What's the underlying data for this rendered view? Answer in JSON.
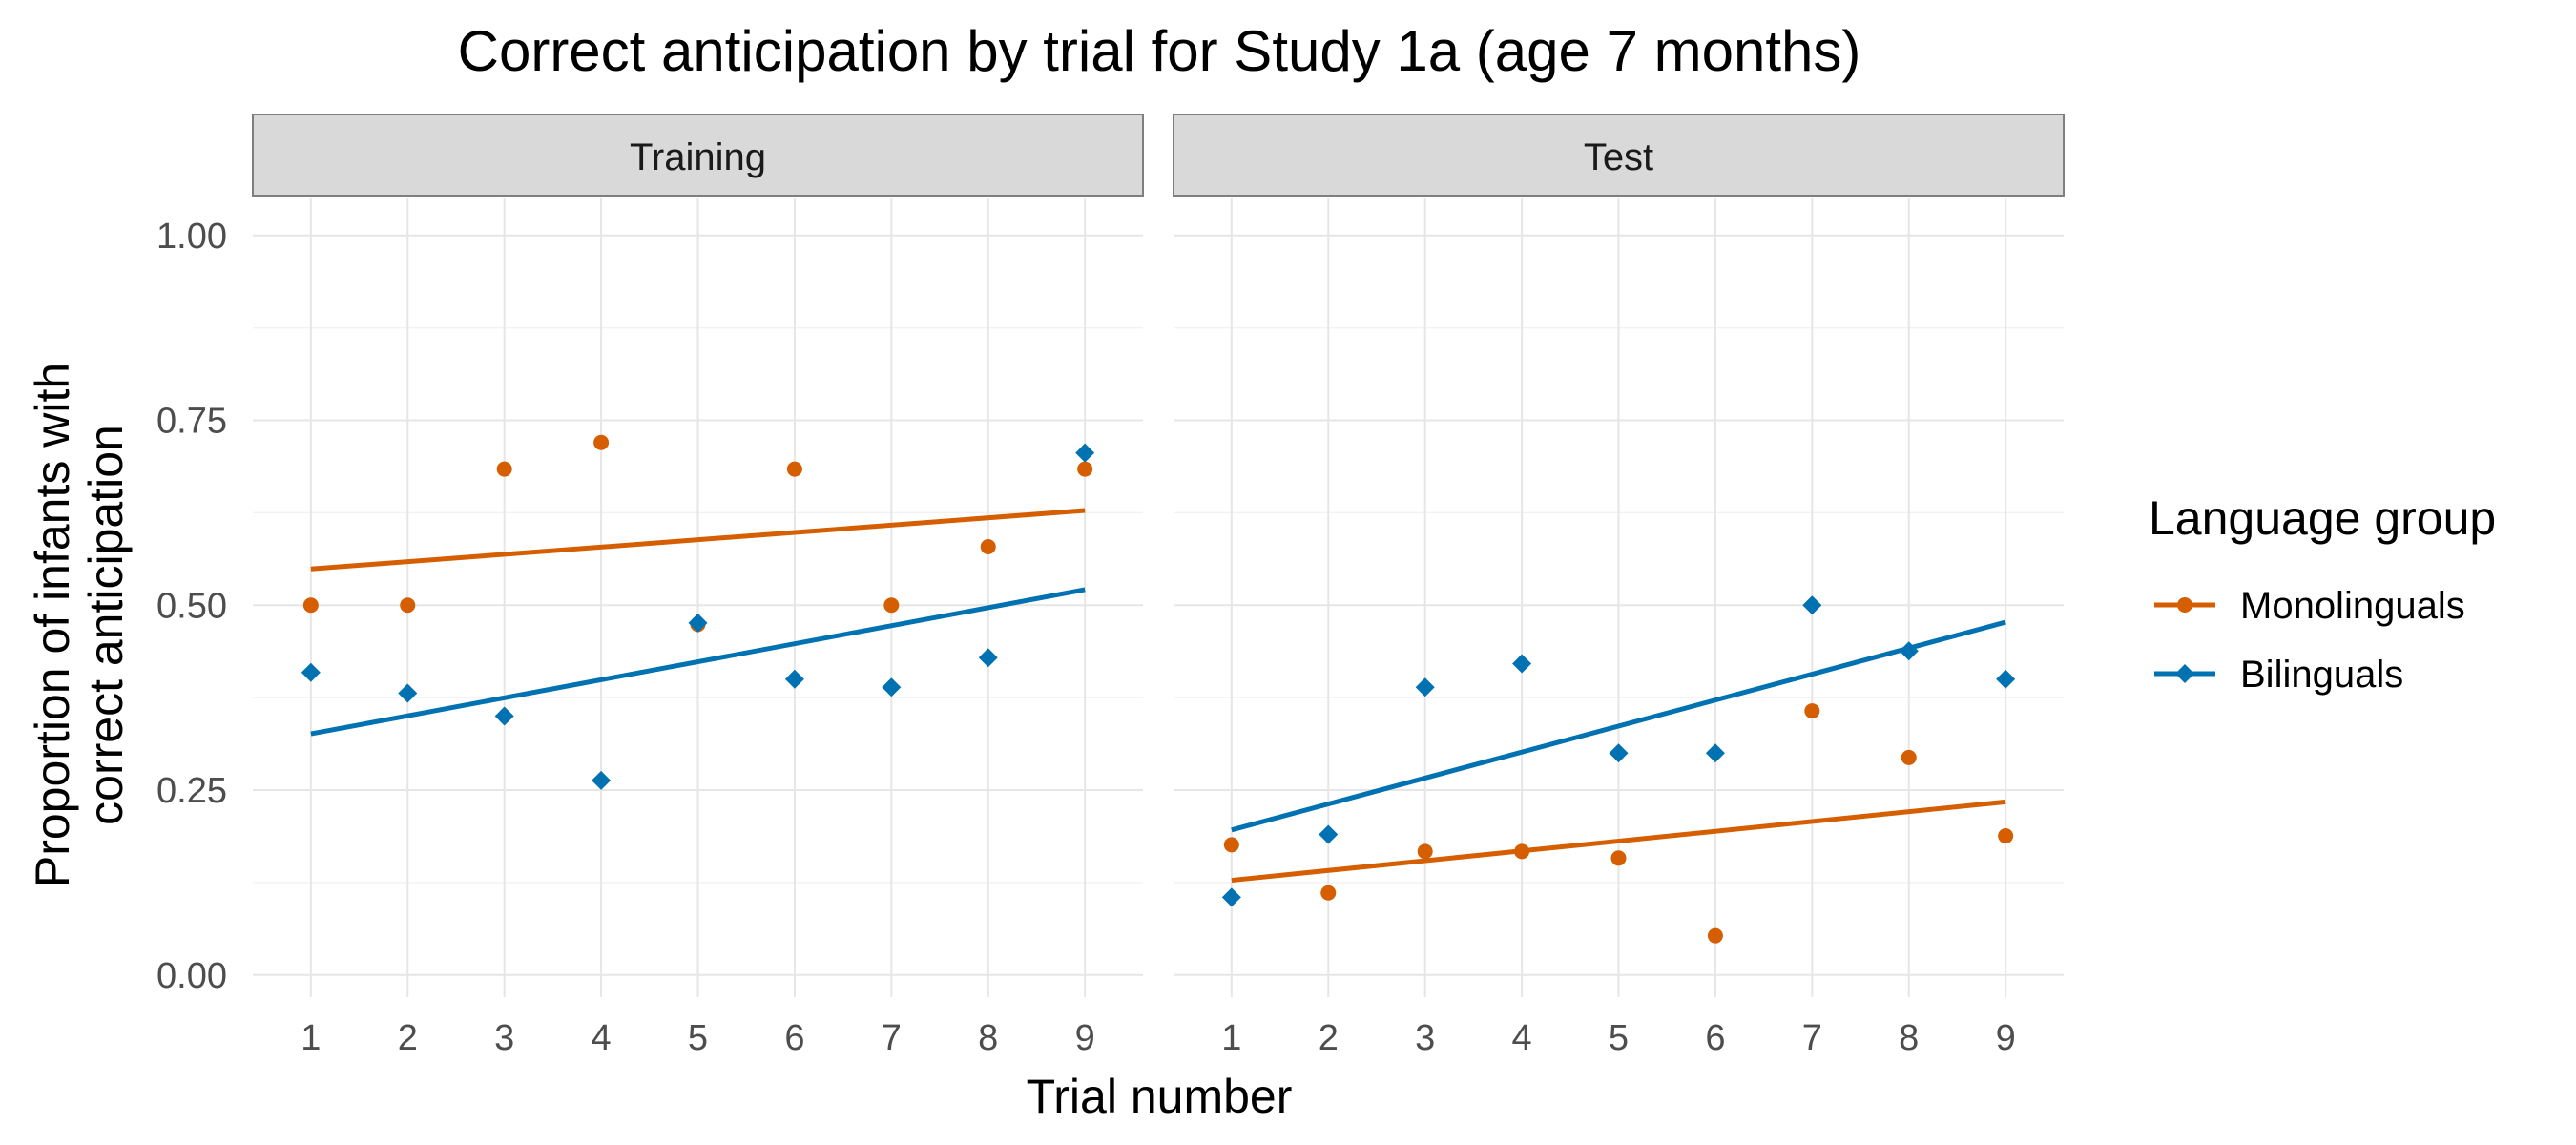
{
  "chart_data": {
    "type": "scatter",
    "title": "Correct anticipation by trial for Study 1a (age 7 months)",
    "xlabel": "Trial number",
    "ylabel_lines": [
      "Proportion of infants with",
      "correct anticipation"
    ],
    "x_ticks": [
      "1",
      "2",
      "3",
      "4",
      "5",
      "6",
      "7",
      "8",
      "9"
    ],
    "y_ticks": [
      "0.00",
      "0.25",
      "0.50",
      "0.75",
      "1.00"
    ],
    "y_tick_values": [
      0,
      0.25,
      0.5,
      0.75,
      1.0
    ],
    "xlim": [
      0.4,
      9.6
    ],
    "ylim": [
      -0.03,
      1.05
    ],
    "grid": true,
    "legend": {
      "title": "Language group",
      "position": "right",
      "entries": [
        {
          "label": "Monolinguals",
          "color": "#D55E00",
          "shape": "circle"
        },
        {
          "label": "Bilinguals",
          "color": "#0072B2",
          "shape": "diamond"
        }
      ]
    },
    "panels": [
      {
        "label": "Training",
        "series": [
          {
            "name": "Monolinguals",
            "color": "#D55E00",
            "shape": "circle",
            "x": [
              1,
              2,
              3,
              4,
              5,
              6,
              7,
              8,
              9
            ],
            "y": [
              0.5,
              0.5,
              0.684,
              0.72,
              0.474,
              0.684,
              0.5,
              0.579,
              0.684
            ],
            "trend": {
              "x": [
                1,
                9
              ],
              "y": [
                0.549,
                0.628
              ]
            }
          },
          {
            "name": "Bilinguals",
            "color": "#0072B2",
            "shape": "diamond",
            "x": [
              1,
              2,
              3,
              4,
              5,
              6,
              7,
              8,
              9
            ],
            "y": [
              0.409,
              0.381,
              0.35,
              0.263,
              0.476,
              0.4,
              0.389,
              0.429,
              0.706
            ],
            "trend": {
              "x": [
                1,
                9
              ],
              "y": [
                0.326,
                0.521
              ]
            }
          }
        ]
      },
      {
        "label": "Test",
        "series": [
          {
            "name": "Monolinguals",
            "color": "#D55E00",
            "shape": "circle",
            "x": [
              1,
              2,
              3,
              4,
              5,
              6,
              7,
              8,
              9
            ],
            "y": [
              0.176,
              0.111,
              0.167,
              0.167,
              0.158,
              0.053,
              0.357,
              0.294,
              0.188
            ],
            "trend": {
              "x": [
                1,
                9
              ],
              "y": [
                0.128,
                0.234
              ]
            }
          },
          {
            "name": "Bilinguals",
            "color": "#0072B2",
            "shape": "diamond",
            "x": [
              1,
              2,
              3,
              4,
              5,
              6,
              7,
              8,
              9
            ],
            "y": [
              0.105,
              0.19,
              0.389,
              0.421,
              0.3,
              0.3,
              0.5,
              0.438,
              0.4
            ],
            "trend": {
              "x": [
                1,
                9
              ],
              "y": [
                0.196,
                0.477
              ]
            }
          }
        ]
      }
    ]
  }
}
